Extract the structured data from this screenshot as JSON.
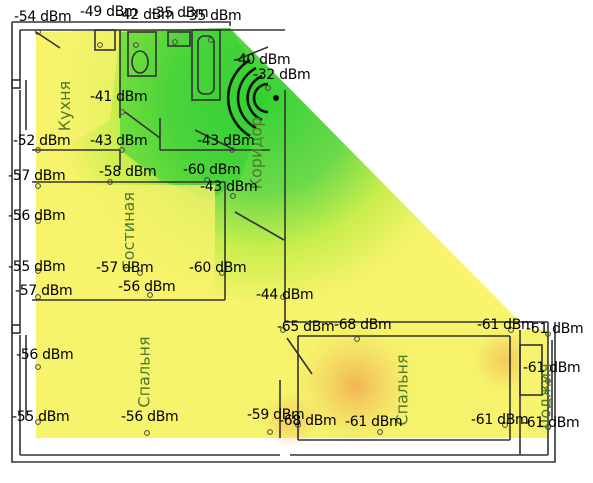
{
  "rooms": {
    "kitchen": "Кухня",
    "corridor": "Коридор",
    "living": "Гостиная",
    "bedroom1": "Спальня",
    "bedroom2": "Спальня",
    "loggia": "Лоджия"
  },
  "readings": [
    "-54 dBm",
    "-49 dBm",
    "-42 dBm",
    "-35 dBm",
    "-35 dBm",
    "-40 dBm",
    "-32 dBm",
    "-41 dBm",
    "-43 dBm",
    "-43 dBm",
    "-52 dBm",
    "-57 dBm",
    "-58 dBm",
    "-60 dBm",
    "-43 dBm",
    "-56 dBm",
    "-55 dBm",
    "-57 dBm",
    "-60 dBm",
    "-57 dBm",
    "-56 dBm",
    "-44 dBm",
    "-65 dBm",
    "-68 dBm",
    "-61 dBm",
    "-61 dBm",
    "-56 dBm",
    "-61 dBm",
    "-55 dBm",
    "-56 dBm",
    "-59 dBm",
    "-68 dBm",
    "-61 dBm",
    "-61 dBm",
    "-61 dBm"
  ],
  "colors": {
    "strong": "#4fd44f",
    "medium": "#c8ee4a",
    "weak": "#f4f36a",
    "poor": "#f0b050",
    "walls": "#333333",
    "room_label": "#4d7a2a"
  },
  "icons": {
    "router": "wifi-router-icon"
  }
}
